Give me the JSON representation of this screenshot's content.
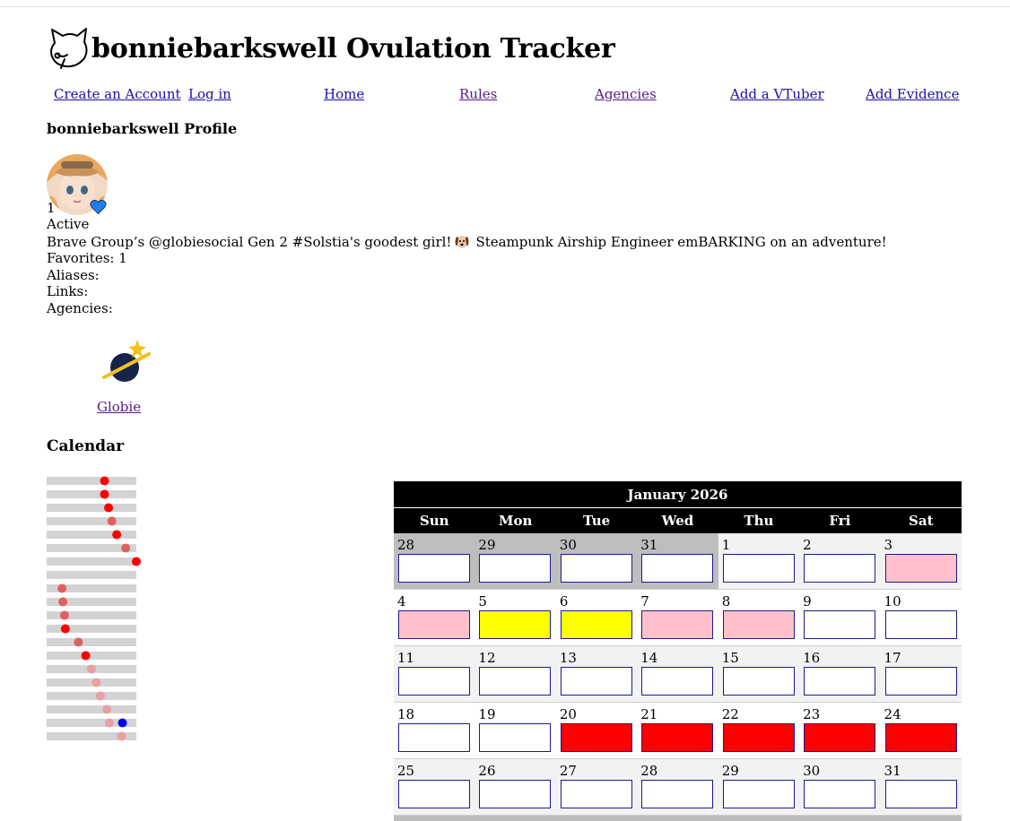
{
  "site": {
    "title": "bonniebarkswell Ovulation Tracker",
    "logo_icon": "cat-head-outline-icon"
  },
  "nav": {
    "create_account": "Create an Account",
    "log_in": "Log in",
    "home": "Home",
    "rules": "Rules",
    "agencies": "Agencies",
    "add_vtuber": "Add a VTuber",
    "add_evidence": "Add Evidence"
  },
  "profile": {
    "heading": "bonniebarkswell Profile",
    "favorite_count": "1",
    "favorite_icon": "blue-heart-icon",
    "status": "Active",
    "bio_before_emoji": "Brave Group’s @globiesocial Gen 2 #Solstia's goodest girl!",
    "bio_emoji": "dog-face-icon",
    "bio_after_emoji": "Steampunk Airship Engineer emBARKING on an adventure!",
    "favorites_line": "Favorites: 1",
    "aliases_label": "Aliases:",
    "links_label": "Links:",
    "agencies_label": "Agencies:"
  },
  "agency": {
    "name": "Globie",
    "logo_icon": "planet-star-icon"
  },
  "calendar": {
    "heading": "Calendar",
    "month_title": "January 2026",
    "weekdays": [
      "Sun",
      "Mon",
      "Tue",
      "Wed",
      "Thu",
      "Fri",
      "Sat"
    ],
    "weeks": [
      [
        {
          "day": "28",
          "other_month": true,
          "mark": "none"
        },
        {
          "day": "29",
          "other_month": true,
          "mark": "none"
        },
        {
          "day": "30",
          "other_month": true,
          "mark": "none"
        },
        {
          "day": "31",
          "other_month": true,
          "mark": "none"
        },
        {
          "day": "1",
          "other_month": false,
          "mark": "none"
        },
        {
          "day": "2",
          "other_month": false,
          "mark": "none"
        },
        {
          "day": "3",
          "other_month": false,
          "mark": "pink"
        }
      ],
      [
        {
          "day": "4",
          "other_month": false,
          "mark": "pink"
        },
        {
          "day": "5",
          "other_month": false,
          "mark": "yellow"
        },
        {
          "day": "6",
          "other_month": false,
          "mark": "yellow"
        },
        {
          "day": "7",
          "other_month": false,
          "mark": "pink"
        },
        {
          "day": "8",
          "other_month": false,
          "mark": "pink"
        },
        {
          "day": "9",
          "other_month": false,
          "mark": "none"
        },
        {
          "day": "10",
          "other_month": false,
          "mark": "none"
        }
      ],
      [
        {
          "day": "11",
          "other_month": false,
          "mark": "none"
        },
        {
          "day": "12",
          "other_month": false,
          "mark": "none"
        },
        {
          "day": "13",
          "other_month": false,
          "mark": "none"
        },
        {
          "day": "14",
          "other_month": false,
          "mark": "none"
        },
        {
          "day": "15",
          "other_month": false,
          "mark": "none"
        },
        {
          "day": "16",
          "other_month": false,
          "mark": "none"
        },
        {
          "day": "17",
          "other_month": false,
          "mark": "none"
        }
      ],
      [
        {
          "day": "18",
          "other_month": false,
          "mark": "none"
        },
        {
          "day": "19",
          "other_month": false,
          "mark": "none"
        },
        {
          "day": "20",
          "other_month": false,
          "mark": "red"
        },
        {
          "day": "21",
          "other_month": false,
          "mark": "red"
        },
        {
          "day": "22",
          "other_month": false,
          "mark": "red"
        },
        {
          "day": "23",
          "other_month": false,
          "mark": "red"
        },
        {
          "day": "24",
          "other_month": false,
          "mark": "red"
        }
      ],
      [
        {
          "day": "25",
          "other_month": false,
          "mark": "none"
        },
        {
          "day": "26",
          "other_month": false,
          "mark": "none"
        },
        {
          "day": "27",
          "other_month": false,
          "mark": "none"
        },
        {
          "day": "28",
          "other_month": false,
          "mark": "none"
        },
        {
          "day": "29",
          "other_month": false,
          "mark": "none"
        },
        {
          "day": "30",
          "other_month": false,
          "mark": "none"
        },
        {
          "day": "31",
          "other_month": false,
          "mark": "none"
        }
      ]
    ]
  },
  "cycle_history": {
    "track_color": "#d3d3d3",
    "dots": [
      {
        "position": 0.61,
        "color": "#ff0000"
      },
      {
        "position": 0.61,
        "color": "#ff0000"
      },
      {
        "position": 0.66,
        "color": "#ff0000"
      },
      {
        "position": 0.7,
        "color": "#e06060"
      },
      {
        "position": 0.76,
        "color": "#ff0000"
      },
      {
        "position": 0.87,
        "color": "#e06060"
      },
      {
        "position": 1.0,
        "color": "#ff0000"
      },
      {
        "position": null,
        "color": null
      },
      {
        "position": 0.09,
        "color": "#e06060"
      },
      {
        "position": 0.1,
        "color": "#e06060"
      },
      {
        "position": 0.12,
        "color": "#e06060"
      },
      {
        "position": 0.13,
        "color": "#ff0000"
      },
      {
        "position": 0.29,
        "color": "#e06060"
      },
      {
        "position": 0.38,
        "color": "#ff0000"
      },
      {
        "position": 0.45,
        "color": "#e8a0a0"
      },
      {
        "position": 0.51,
        "color": "#e8a0a0"
      },
      {
        "position": 0.56,
        "color": "#e8a0a0"
      },
      {
        "position": 0.64,
        "color": "#e8a0a0"
      },
      {
        "position": 0.67,
        "color": "#e8a0a0",
        "extra_position": 0.83,
        "extra_color": "#0000ee"
      },
      {
        "position": 0.82,
        "color": "#e8a0a0"
      }
    ]
  }
}
